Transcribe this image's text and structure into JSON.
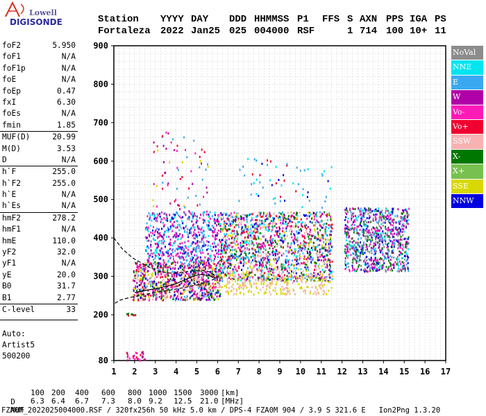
{
  "logo": {
    "brand": "Lowell",
    "name": "DIGISONDE"
  },
  "header": {
    "labels": [
      "Station",
      "YYYY",
      "DAY",
      "DDD",
      "HHMMSS",
      "P1",
      "FFS",
      "S",
      "AXN",
      "PPS",
      "IGA",
      "PS"
    ],
    "values": [
      "Fortaleza",
      "2022",
      "Jan25",
      "025",
      "004000",
      "RSF",
      "",
      "1",
      "714",
      "100",
      "10+",
      "11"
    ]
  },
  "params": [
    {
      "name": "foF2",
      "value": "5.950",
      "sep": false
    },
    {
      "name": "foF1",
      "value": "N/A",
      "sep": false
    },
    {
      "name": "foF1p",
      "value": "N/A",
      "sep": false
    },
    {
      "name": "foE",
      "value": "N/A",
      "sep": false
    },
    {
      "name": "foEp",
      "value": "0.47",
      "sep": false
    },
    {
      "name": "fxI",
      "value": "6.30",
      "sep": false
    },
    {
      "name": "foEs",
      "value": "N/A",
      "sep": false
    },
    {
      "name": "fmin",
      "value": "1.85",
      "sep": false
    },
    {
      "name": "MUF(D)",
      "value": "20.99",
      "sep": true
    },
    {
      "name": "M(D)",
      "value": "3.53",
      "sep": false
    },
    {
      "name": "D",
      "value": "N/A",
      "sep": false
    },
    {
      "name": "h`F",
      "value": "255.0",
      "sep": true
    },
    {
      "name": "h`F2",
      "value": "255.0",
      "sep": false
    },
    {
      "name": "h`E",
      "value": "N/A",
      "sep": false
    },
    {
      "name": "h`Es",
      "value": "N/A",
      "sep": false
    },
    {
      "name": "hmF2",
      "value": "278.2",
      "sep": true
    },
    {
      "name": "hmF1",
      "value": "N/A",
      "sep": false
    },
    {
      "name": "hmE",
      "value": "110.0",
      "sep": false
    },
    {
      "name": "yF2",
      "value": "32.0",
      "sep": false
    },
    {
      "name": "yF1",
      "value": "N/A",
      "sep": false
    },
    {
      "name": "yE",
      "value": "20.0",
      "sep": false
    },
    {
      "name": "B0",
      "value": "31.7",
      "sep": false
    },
    {
      "name": "B1",
      "value": "2.77",
      "sep": false
    },
    {
      "name": "C-level",
      "value": "33",
      "sep": true
    }
  ],
  "auto": {
    "label": "Auto:",
    "software": "Artist5",
    "version": "500200"
  },
  "legend": [
    {
      "label": "NoVal",
      "color": "#8c8c8c"
    },
    {
      "label": "NNE",
      "color": "#00e5f0"
    },
    {
      "label": "E",
      "color": "#3aa8f0"
    },
    {
      "label": "W",
      "color": "#b000a8"
    },
    {
      "label": "Vo-",
      "color": "#ff1ab8"
    },
    {
      "label": "Vo+",
      "color": "#f00030"
    },
    {
      "label": "SSW",
      "color": "#f8b2b2"
    },
    {
      "label": "X-",
      "color": "#007800"
    },
    {
      "label": "X+",
      "color": "#78c050"
    },
    {
      "label": "SSE",
      "color": "#d8d800"
    },
    {
      "label": "NNW",
      "color": "#0000e0"
    }
  ],
  "footer": {
    "d_label": "D",
    "d_values": [
      "100",
      "200",
      "400",
      "600",
      "800",
      "1000",
      "1500",
      "3000",
      "[km]"
    ],
    "muf_label": "MUF",
    "muf_values": [
      "6.3",
      "6.4",
      "6.7",
      "7.3",
      "8.0",
      "9.2",
      "12.5",
      "21.0",
      "[MHz]"
    ],
    "info": "FZA0M_2022025004000.RSF / 320fx256h 50 kHz 5.0 km / DPS-4 FZA0M 904 / 3.9 S 321.6 E   Ion2Png 1.3.20"
  },
  "chart_data": {
    "type": "scatter",
    "xlim": [
      1,
      17
    ],
    "ylim": [
      80,
      900
    ],
    "x_ticks": [
      1,
      2,
      3,
      4,
      5,
      6,
      7,
      8,
      9,
      10,
      11,
      12,
      13,
      14,
      15,
      16,
      17
    ],
    "y_ticks": [
      80,
      200,
      300,
      400,
      500,
      600,
      700,
      800,
      900
    ],
    "grid": true,
    "legend_position": "right",
    "clusters": [
      {
        "xmin": 1.9,
        "xmax": 6.1,
        "ymin": 240,
        "ymax": 340,
        "n": 900,
        "colors": [
          "#ff1ab8",
          "#f00030",
          "#b000a8",
          "#d8d800",
          "#0000e0",
          "#3aa8f0",
          "#007800",
          "#f8b2b2"
        ]
      },
      {
        "xmin": 2.5,
        "xmax": 6.0,
        "ymin": 340,
        "ymax": 470,
        "n": 550,
        "colors": [
          "#3aa8f0",
          "#00e5f0",
          "#b000a8",
          "#0000e0",
          "#ff1ab8"
        ]
      },
      {
        "xmin": 2.8,
        "xmax": 5.6,
        "ymin": 470,
        "ymax": 680,
        "n": 70,
        "colors": [
          "#d8d800",
          "#3aa8f0",
          "#b000a8",
          "#f00030",
          "#ff1ab8"
        ]
      },
      {
        "xmin": 6.0,
        "xmax": 11.5,
        "ymin": 290,
        "ymax": 470,
        "n": 1500,
        "colors": [
          "#d8d800",
          "#f8b2b2",
          "#0000e0",
          "#b000a8",
          "#ff1ab8",
          "#3aa8f0",
          "#007800",
          "#f00030",
          "#00e5f0"
        ]
      },
      {
        "xmin": 6.0,
        "xmax": 11.5,
        "ymin": 255,
        "ymax": 310,
        "n": 260,
        "colors": [
          "#f8b2b2",
          "#d8d800"
        ]
      },
      {
        "xmin": 7.0,
        "xmax": 11.5,
        "ymin": 480,
        "ymax": 610,
        "n": 60,
        "colors": [
          "#00e5f0",
          "#3aa8f0",
          "#0000e0",
          "#f00030"
        ]
      },
      {
        "xmin": 12.1,
        "xmax": 15.2,
        "ymin": 315,
        "ymax": 480,
        "n": 850,
        "colors": [
          "#0000e0",
          "#b000a8",
          "#007800",
          "#00e5f0",
          "#3aa8f0",
          "#ff1ab8",
          "#8c8c8c"
        ]
      },
      {
        "xmin": 1.6,
        "xmax": 2.5,
        "ymin": 82,
        "ymax": 105,
        "n": 30,
        "colors": [
          "#ff1ab8",
          "#f00030",
          "#b000a8"
        ]
      },
      {
        "xmin": 1.5,
        "xmax": 2.1,
        "ymin": 198,
        "ymax": 206,
        "n": 8,
        "colors": [
          "#f00030",
          "#007800"
        ]
      }
    ],
    "curves": [
      {
        "style": "dashed",
        "color": "#000000",
        "x": [
          1.05,
          1.3,
          1.7,
          2.2,
          2.7,
          3.2,
          3.7,
          4.2,
          4.7,
          5.2,
          5.7,
          6.0
        ],
        "y": [
          230,
          238,
          244,
          250,
          255,
          260,
          264,
          269,
          274,
          280,
          289,
          300
        ]
      },
      {
        "style": "dashed",
        "color": "#000000",
        "x": [
          1.0,
          1.4,
          1.9,
          2.4,
          2.8,
          3.2,
          3.6,
          4.0,
          4.4,
          4.8,
          5.2,
          5.6,
          5.95
        ],
        "y": [
          400,
          372,
          348,
          333,
          321,
          313,
          309,
          308,
          311,
          315,
          316,
          312,
          300
        ]
      },
      {
        "style": "solid",
        "color": "#000000",
        "x": [
          2.0,
          2.4,
          2.8,
          3.2,
          3.6,
          4.0,
          4.4,
          4.8,
          5.2,
          5.6,
          5.95
        ],
        "y": [
          258,
          262,
          266,
          270,
          275,
          281,
          290,
          300,
          305,
          302,
          295
        ]
      }
    ]
  }
}
